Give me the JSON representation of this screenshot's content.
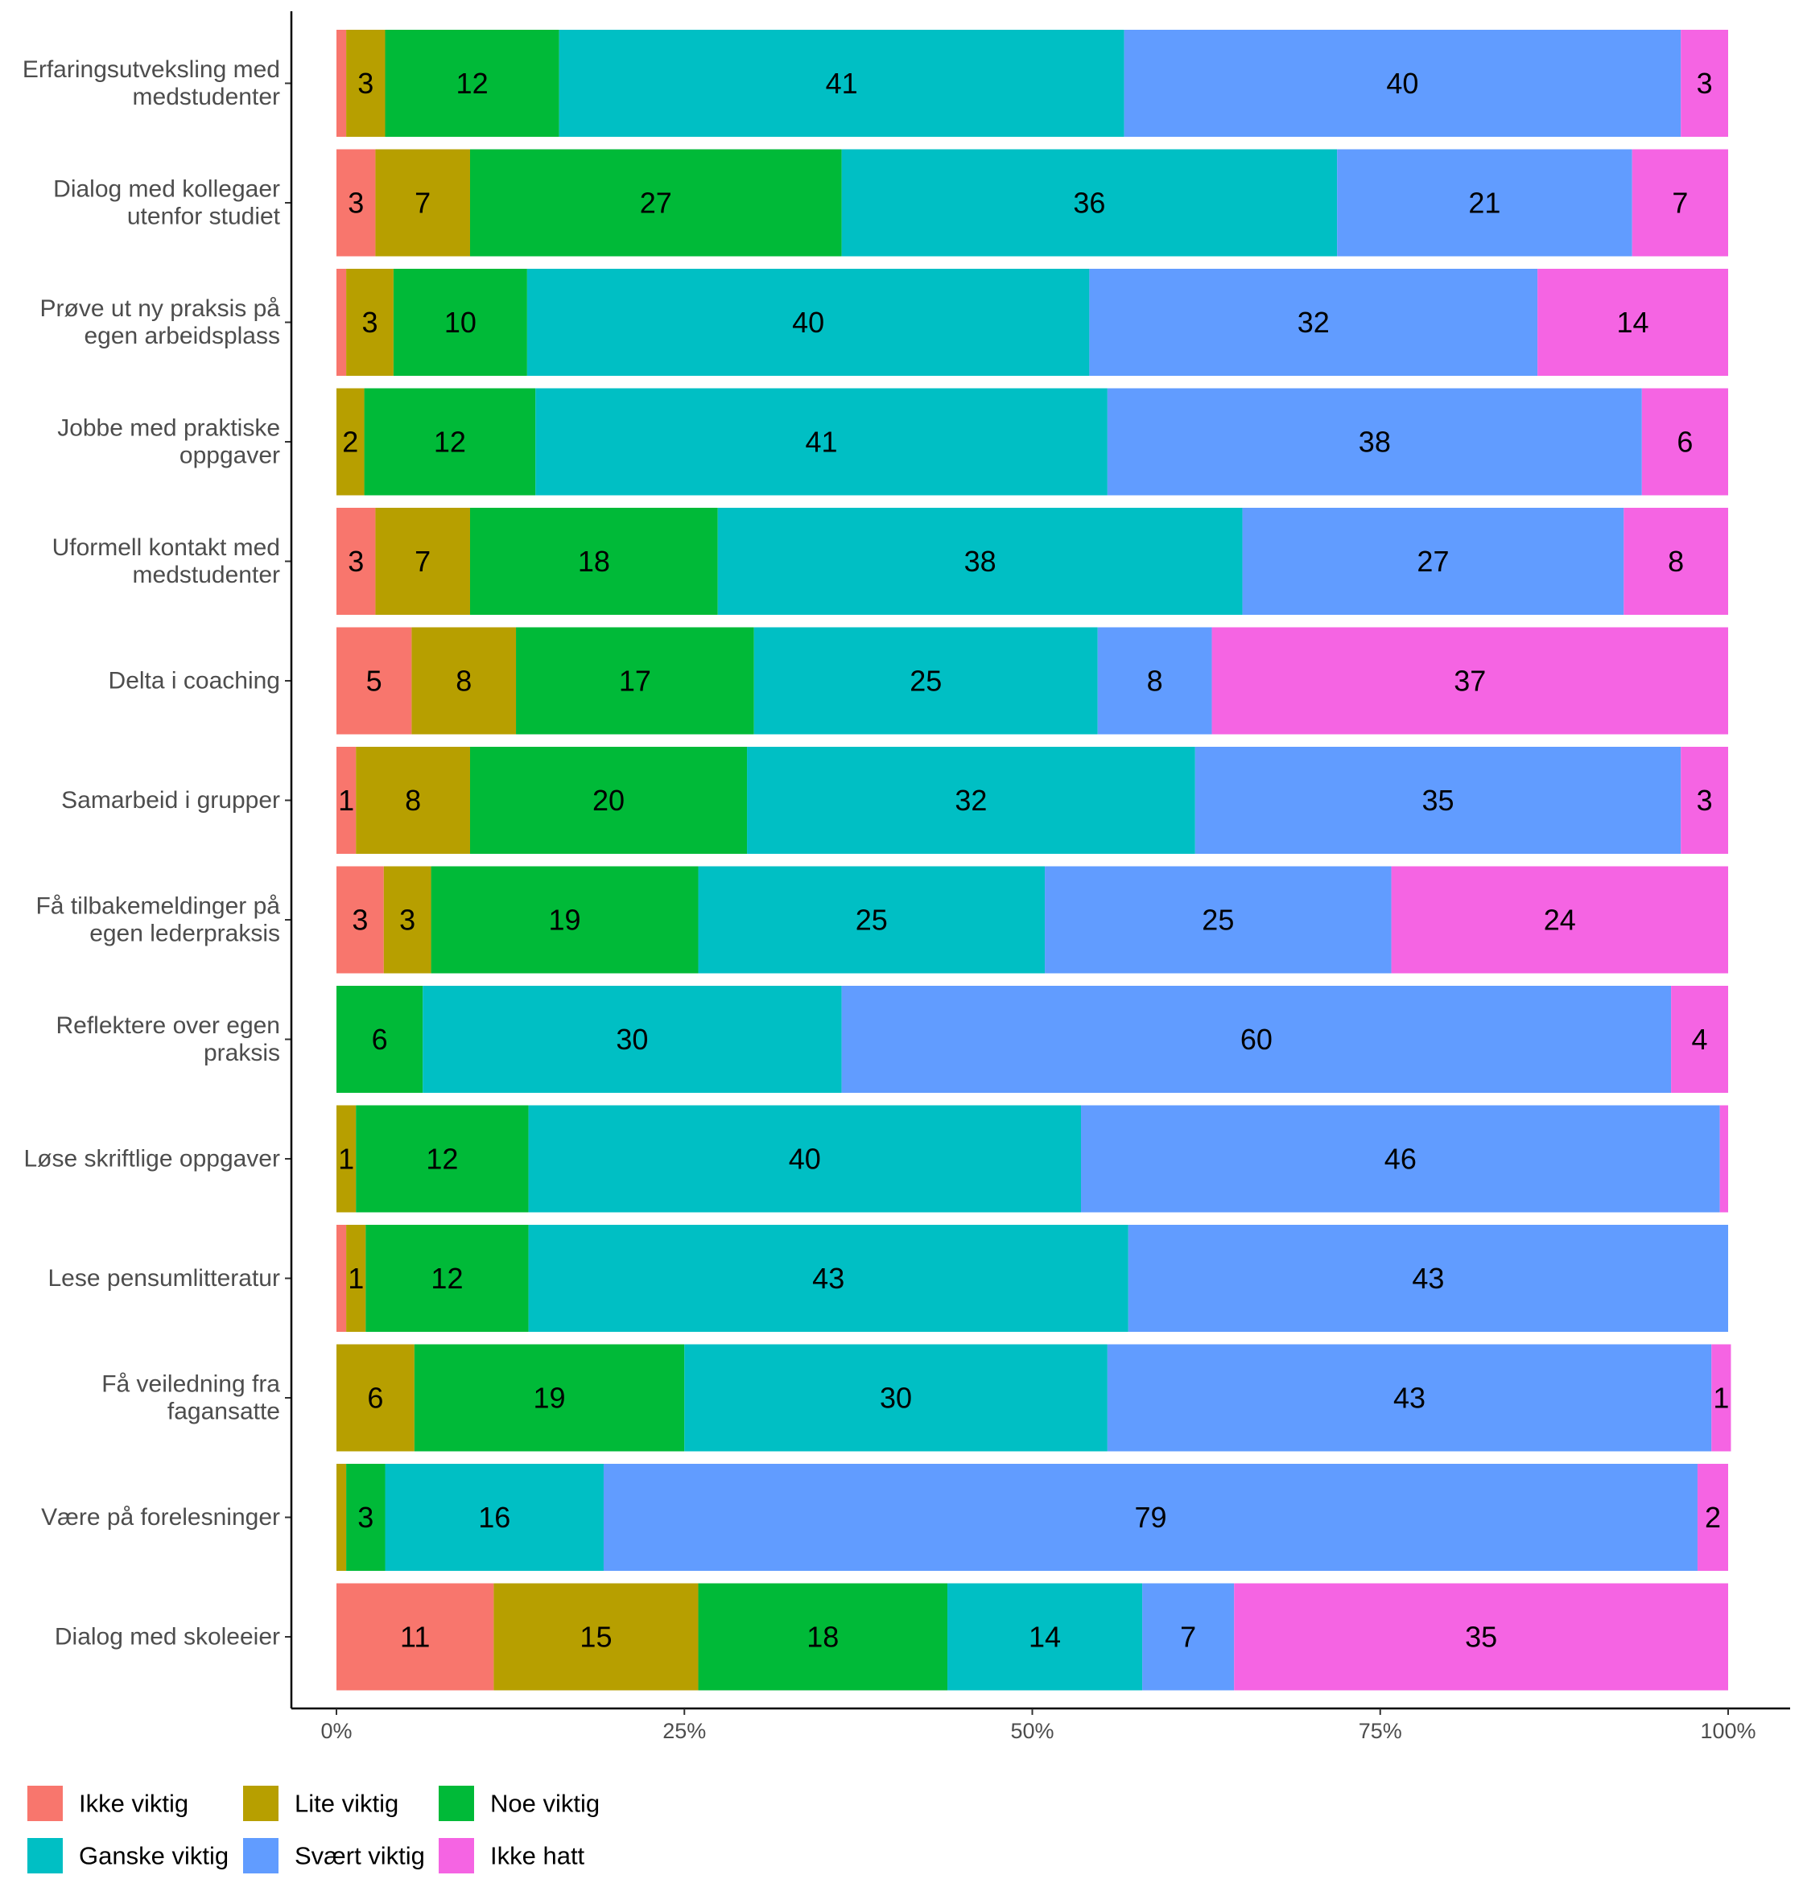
{
  "chart_data": {
    "type": "bar",
    "orientation": "horizontal",
    "stacked": "percent",
    "title": "",
    "xlabel": "",
    "ylabel": "",
    "xlim": [
      0,
      100
    ],
    "x_ticks": [
      "0%",
      "25%",
      "50%",
      "75%",
      "100%"
    ],
    "grid": false,
    "legend_position": "bottom",
    "categories": [
      "Erfaringsutveksling med\nmedstudenter",
      "Dialog med kollegaer\nutenfor studiet",
      "Prøve ut ny praksis på\negen arbeidsplass",
      "Jobbe med praktiske\noppgaver",
      "Uformell kontakt med\nmedstudenter",
      "Delta i coaching",
      "Samarbeid i grupper",
      "Få tilbakemeldinger på\negen lederpraksis",
      "Reflektere over egen\npraksis",
      "Løse skriftlige oppgaver",
      "Lese pensumlitteratur",
      "Få veiledning fra\nfagansatte",
      "Være på forelesninger",
      "Dialog med skoleeier"
    ],
    "series": [
      {
        "name": "Ikke viktig",
        "color": "#F8766D",
        "values": [
          0.7,
          2.8,
          0.7,
          0,
          2.8,
          5.4,
          1.4,
          3.4,
          0,
          0,
          0.7,
          0,
          0,
          11.3
        ],
        "labels": [
          "",
          "3",
          "",
          "",
          "3",
          "5",
          "1",
          "3",
          "",
          "",
          "",
          "",
          "",
          "11"
        ]
      },
      {
        "name": "Lite viktig",
        "color": "#B79F00",
        "values": [
          2.8,
          6.8,
          3.4,
          2.0,
          6.8,
          7.5,
          8.2,
          3.4,
          0,
          1.4,
          1.4,
          5.6,
          0.7,
          14.7
        ],
        "labels": [
          "3",
          "7",
          "3",
          "2",
          "7",
          "8",
          "8",
          "3",
          "",
          "1",
          "1",
          "6",
          "",
          "15"
        ]
      },
      {
        "name": "Noe viktig",
        "color": "#00BA38",
        "values": [
          12.5,
          26.7,
          9.6,
          12.3,
          17.8,
          17.1,
          19.9,
          19.2,
          6.2,
          12.4,
          11.7,
          19.4,
          2.8,
          17.9
        ],
        "labels": [
          "12",
          "27",
          "10",
          "12",
          "18",
          "17",
          "20",
          "19",
          "6",
          "12",
          "12",
          "19",
          "3",
          "18"
        ]
      },
      {
        "name": "Ganske viktig",
        "color": "#00BFC4",
        "values": [
          40.6,
          35.6,
          40.4,
          41.1,
          37.7,
          24.7,
          32.2,
          24.9,
          30.1,
          39.7,
          43.1,
          30.4,
          15.7,
          14.0
        ],
        "labels": [
          "41",
          "36",
          "40",
          "41",
          "38",
          "25",
          "32",
          "25",
          "30",
          "40",
          "43",
          "30",
          "16",
          "14"
        ]
      },
      {
        "name": "Svært viktig",
        "color": "#619CFF",
        "values": [
          40.0,
          21.2,
          32.2,
          38.4,
          27.4,
          8.2,
          34.9,
          24.9,
          59.6,
          45.9,
          43.1,
          43.4,
          78.6,
          6.6
        ],
        "labels": [
          "40",
          "21",
          "32",
          "38",
          "27",
          "8",
          "35",
          "25",
          "60",
          "46",
          "43",
          "43",
          "79",
          "7"
        ]
      },
      {
        "name": "Ikke hatt",
        "color": "#F564E3",
        "values": [
          3.4,
          6.9,
          13.7,
          6.2,
          7.5,
          37.1,
          3.4,
          24.2,
          4.1,
          0.6,
          0,
          1.4,
          2.2,
          35.5
        ],
        "labels": [
          "3",
          "7",
          "14",
          "6",
          "8",
          "37",
          "3",
          "24",
          "4",
          "",
          "",
          "1",
          "2",
          "35"
        ]
      }
    ]
  }
}
